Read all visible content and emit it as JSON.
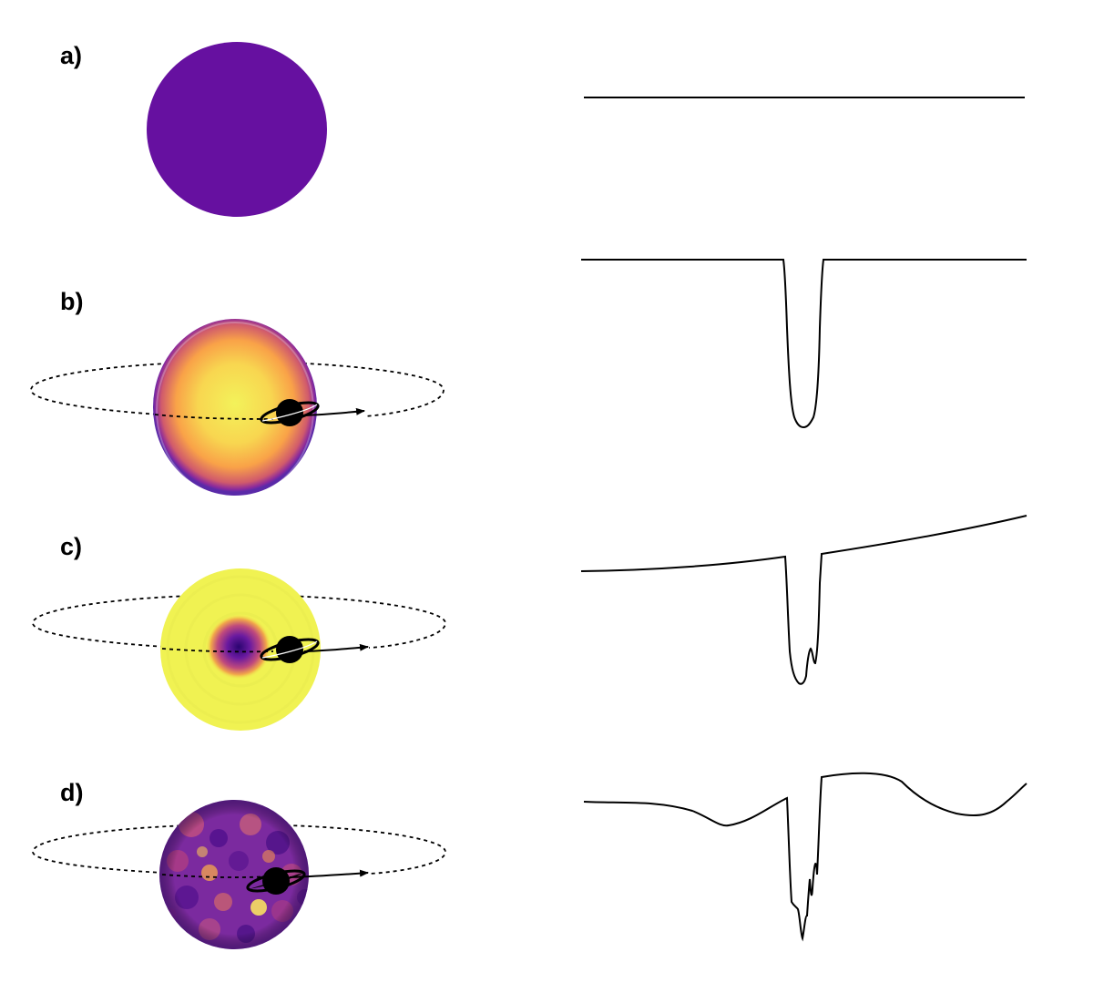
{
  "panels": [
    {
      "id": "a",
      "label": "a)",
      "star": "uniform",
      "planet": false
    },
    {
      "id": "b",
      "label": "b)",
      "star": "limb-darkened",
      "planet": true
    },
    {
      "id": "c",
      "label": "c)",
      "star": "single-dark-spot",
      "planet": true
    },
    {
      "id": "d",
      "label": "d)",
      "star": "mottled-surface",
      "planet": true
    }
  ],
  "colors": {
    "uniform_star": "#6610a0",
    "star_center": "#f3f25a",
    "star_mid": "#f9a248",
    "star_edge": "#8b2a9c",
    "star_rim": "#5a2aa8",
    "spot_core": "#2a0470",
    "mottle_base": "#7b2a9f",
    "planet": "#000000",
    "light_curve": "#000000"
  },
  "icons": {
    "planet": "ringed-planet-icon",
    "orbit_direction": "arrow-right-icon"
  }
}
